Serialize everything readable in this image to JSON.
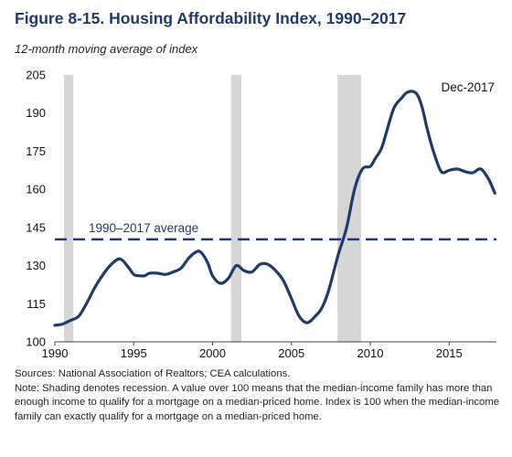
{
  "title": "Figure 8-15. Housing Affordability Index, 1990–2017",
  "subtitle": "12-month moving average of index",
  "sources": "Sources: National Association of Realtors; CEA calculations.",
  "note": "Note: Shading denotes recession. A value over 100 means that the median-income family has more than enough income to qualify for a mortgage on a median-priced home. Index is 100 when the median-income family can exactly qualify for a mortgage on a median-priced home.",
  "colors": {
    "series": "#1f3a6b",
    "recession": "#d6d6d6",
    "title": "#1f3a6b"
  },
  "chart_data": {
    "type": "line",
    "title": "Figure 8-15. Housing Affordability Index, 1990–2017",
    "subtitle": "12-month moving average of index",
    "xlim": [
      1990,
      2018
    ],
    "ylim": [
      100,
      205
    ],
    "xticks": [
      1990,
      1995,
      2000,
      2005,
      2010,
      2015
    ],
    "yticks": [
      100,
      115,
      130,
      145,
      160,
      175,
      190,
      205
    ],
    "grid": false,
    "recessions": [
      [
        1990.58,
        1991.17
      ],
      [
        2001.17,
        2001.83
      ],
      [
        2007.92,
        2009.42
      ]
    ],
    "reference_line": {
      "label": "1990–2017 average",
      "y": 140.3,
      "style": "dashed"
    },
    "end_label": "Dec-2017",
    "series": [
      {
        "x": [
          1990.0,
          1990.5,
          1991.0,
          1991.5,
          1992.0,
          1992.5,
          1993.0,
          1993.5,
          1994.0,
          1994.3,
          1994.7,
          1995.0,
          1995.3,
          1995.7,
          1996.0,
          1996.5,
          1997.0,
          1997.5,
          1998.0,
          1998.5,
          1999.0,
          1999.3,
          1999.7,
          2000.0,
          2000.5,
          2001.0,
          2001.5,
          2002.0,
          2002.5,
          2003.0,
          2003.5,
          2004.0,
          2004.5,
          2005.0,
          2005.5,
          2006.0,
          2006.5,
          2006.9,
          2007.3,
          2007.7,
          2008.0,
          2008.5,
          2009.0,
          2009.5,
          2010.0,
          2010.3,
          2010.7,
          2011.0,
          2011.5,
          2012.0,
          2012.3,
          2012.7,
          2013.0,
          2013.3,
          2013.6,
          2014.0,
          2014.5,
          2015.0,
          2015.5,
          2016.0,
          2016.5,
          2017.0,
          2017.5,
          2017.9
        ],
        "y": [
          106.5,
          107,
          108.5,
          110,
          115,
          121,
          126,
          130,
          132.5,
          132,
          129,
          126.5,
          126,
          126,
          127,
          127,
          126.5,
          127.5,
          129,
          133,
          135.5,
          135,
          131,
          126,
          123,
          125,
          130,
          128,
          127.5,
          130.5,
          130.5,
          128,
          124,
          117,
          110,
          107.5,
          110,
          113,
          119,
          128,
          135,
          145,
          160,
          168,
          169,
          172,
          176,
          182,
          192,
          196,
          198,
          198.5,
          197,
          192,
          184,
          175,
          167,
          167.5,
          168,
          167,
          166.5,
          168,
          164,
          158.5
        ]
      }
    ]
  }
}
